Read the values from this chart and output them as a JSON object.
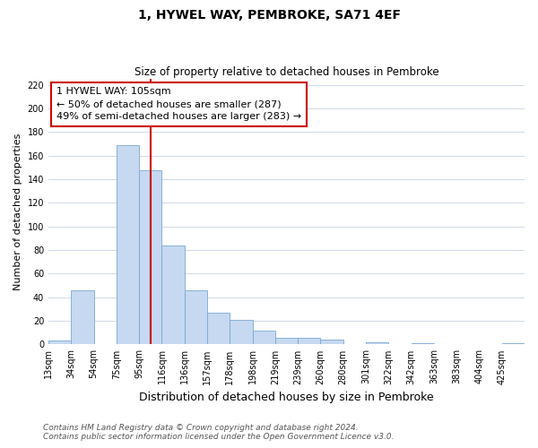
{
  "title": "1, HYWEL WAY, PEMBROKE, SA71 4EF",
  "subtitle": "Size of property relative to detached houses in Pembroke",
  "xlabel": "Distribution of detached houses by size in Pembroke",
  "ylabel": "Number of detached properties",
  "bin_labels": [
    "13sqm",
    "34sqm",
    "54sqm",
    "75sqm",
    "95sqm",
    "116sqm",
    "136sqm",
    "157sqm",
    "178sqm",
    "198sqm",
    "219sqm",
    "239sqm",
    "260sqm",
    "280sqm",
    "301sqm",
    "322sqm",
    "342sqm",
    "363sqm",
    "383sqm",
    "404sqm",
    "425sqm"
  ],
  "bar_heights": [
    3,
    46,
    0,
    169,
    148,
    84,
    46,
    27,
    21,
    12,
    6,
    6,
    4,
    0,
    2,
    0,
    1,
    0,
    0,
    0,
    1
  ],
  "bar_color": "#c6d9f0",
  "bar_edge_color": "#7ba7d4",
  "vline_x_index": 4.5,
  "vline_color": "#cc0000",
  "annotation_line1": "1 HYWEL WAY: 105sqm",
  "annotation_line2": "← 50% of detached houses are smaller (287)",
  "annotation_line3": "49% of semi-detached houses are larger (283) →",
  "ylim": [
    0,
    225
  ],
  "yticks": [
    0,
    20,
    40,
    60,
    80,
    100,
    120,
    140,
    160,
    180,
    200,
    220
  ],
  "grid_color": "#d0d8e8",
  "background_color": "#ffffff",
  "footer_line1": "Contains HM Land Registry data © Crown copyright and database right 2024.",
  "footer_line2": "Contains public sector information licensed under the Open Government Licence v3.0.",
  "box_facecolor": "#ffffff",
  "box_edgecolor": "#cc0000",
  "title_fontsize": 10,
  "subtitle_fontsize": 8.5,
  "ylabel_fontsize": 8,
  "xlabel_fontsize": 9,
  "tick_fontsize": 7,
  "annotation_fontsize": 8,
  "footer_fontsize": 6.5
}
